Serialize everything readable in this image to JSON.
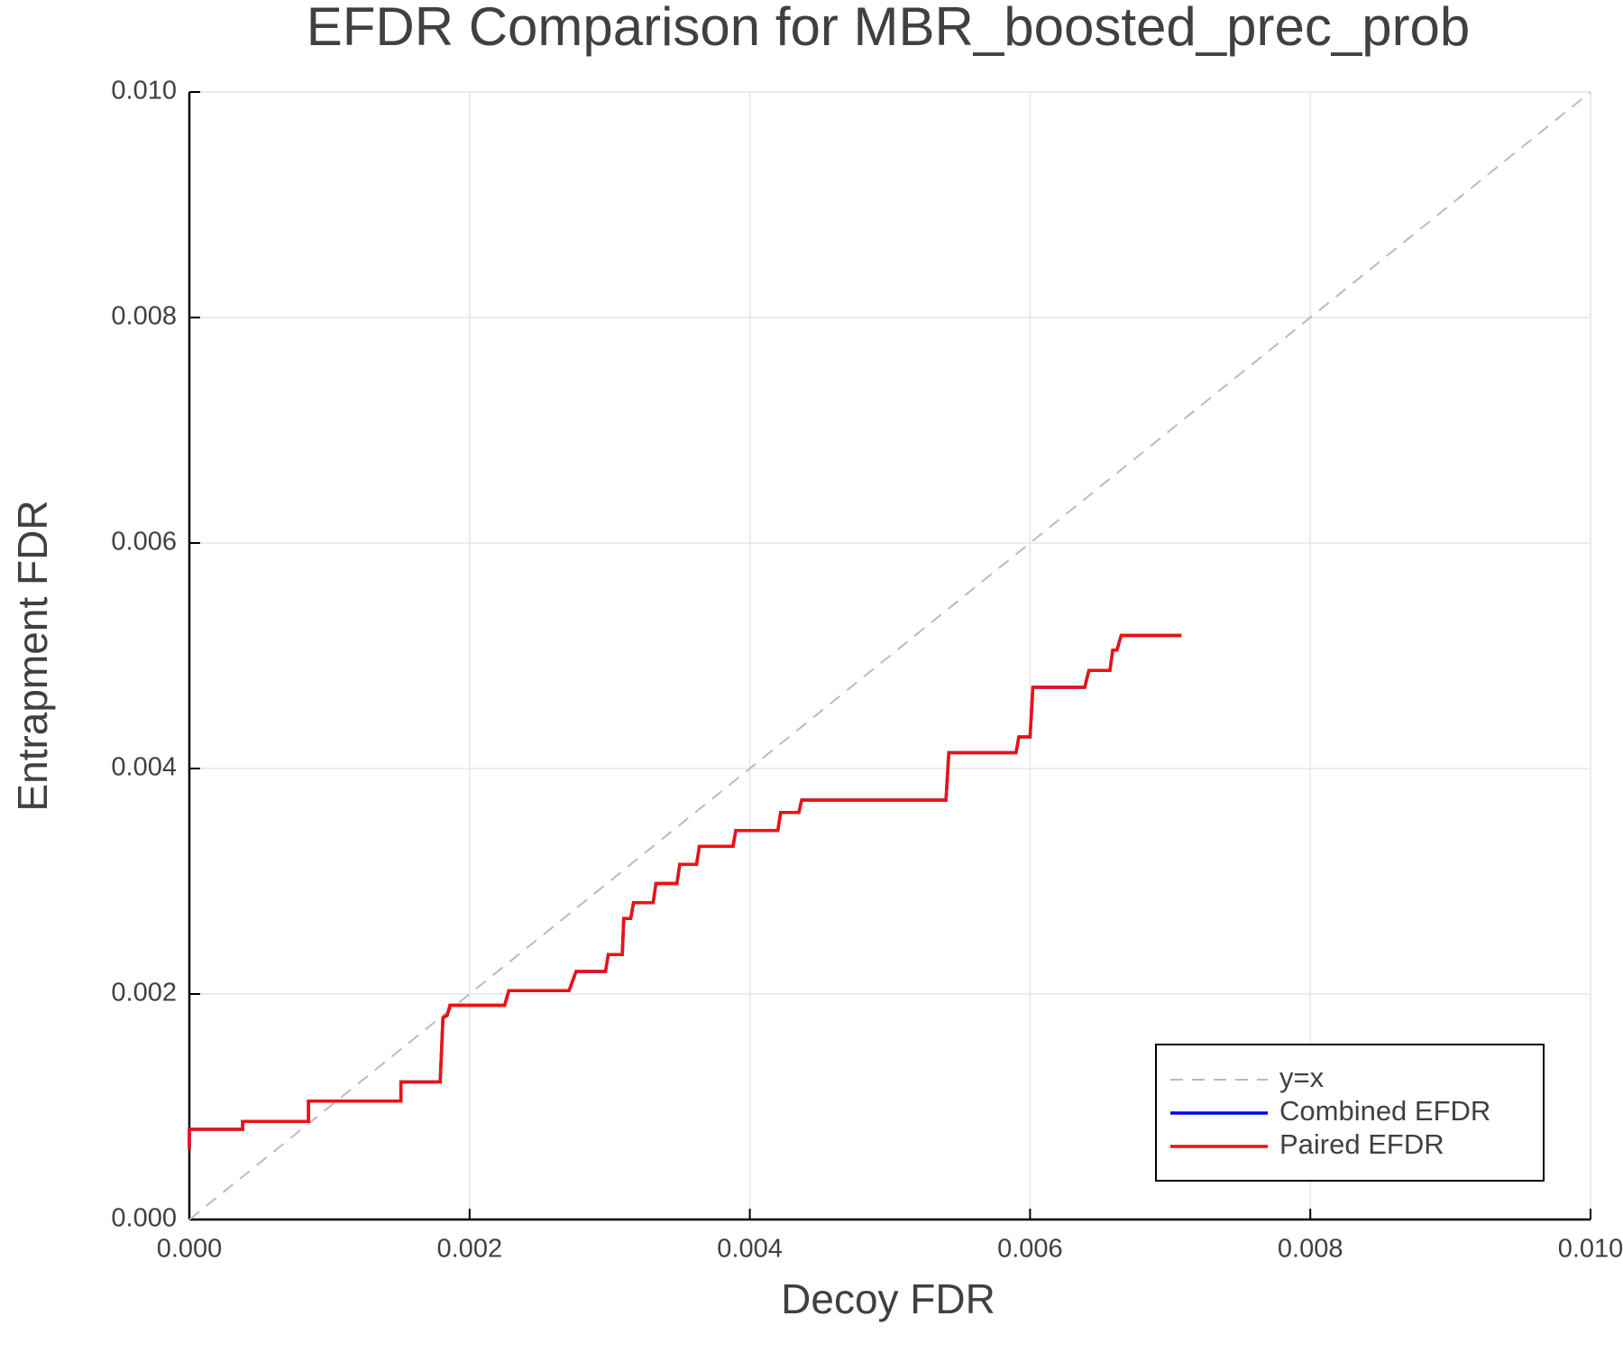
{
  "chart_data": {
    "type": "line",
    "title": "EFDR Comparison for MBR_boosted_prec_prob",
    "xlabel": "Decoy FDR",
    "ylabel": "Entrapment FDR",
    "xlim": [
      0,
      0.01
    ],
    "ylim": [
      0,
      0.01
    ],
    "xticks": [
      {
        "value": 0,
        "label": "0.000"
      },
      {
        "value": 0.002,
        "label": "0.002"
      },
      {
        "value": 0.004,
        "label": "0.004"
      },
      {
        "value": 0.006,
        "label": "0.006"
      },
      {
        "value": 0.008,
        "label": "0.008"
      },
      {
        "value": 0.01,
        "label": "0.010"
      }
    ],
    "yticks": [
      {
        "value": 0,
        "label": "0.000"
      },
      {
        "value": 0.002,
        "label": "0.002"
      },
      {
        "value": 0.004,
        "label": "0.004"
      },
      {
        "value": 0.006,
        "label": "0.006"
      },
      {
        "value": 0.008,
        "label": "0.008"
      },
      {
        "value": 0.01,
        "label": "0.010"
      }
    ],
    "grid": true,
    "legend": "lower right",
    "series": [
      {
        "name": "y=x",
        "color": "#bbbbbb",
        "dashed": true,
        "x": [
          0,
          0.01
        ],
        "values": [
          0,
          0.01
        ]
      },
      {
        "name": "Combined EFDR",
        "color": "#0000ee",
        "x": [
          0,
          0,
          0.00038,
          0.00038,
          0.00085,
          0.00085,
          0.00151,
          0.00151,
          0.00179,
          0.00181,
          0.00184,
          0.00186,
          0.00225,
          0.00228,
          0.00271,
          0.00276,
          0.00297,
          0.00299,
          0.00309,
          0.0031,
          0.00315,
          0.00317,
          0.00331,
          0.00333,
          0.00348,
          0.0035,
          0.00362,
          0.00364,
          0.00388,
          0.0039,
          0.0042,
          0.00422,
          0.00435,
          0.00437,
          0.0054,
          0.00542,
          0.0059,
          0.00592,
          0.006,
          0.00602,
          0.00639,
          0.00642,
          0.00657,
          0.00659,
          0.00662,
          0.00665,
          0.00708
        ],
        "values": [
          0.00062,
          0.0008,
          0.0008,
          0.00087,
          0.00087,
          0.00105,
          0.00105,
          0.00122,
          0.00122,
          0.00179,
          0.00181,
          0.0019,
          0.0019,
          0.00203,
          0.00203,
          0.0022,
          0.0022,
          0.00235,
          0.00235,
          0.00267,
          0.00267,
          0.00281,
          0.00281,
          0.00298,
          0.00298,
          0.00315,
          0.00315,
          0.00331,
          0.00331,
          0.00345,
          0.00345,
          0.00361,
          0.00361,
          0.00372,
          0.00372,
          0.00414,
          0.00414,
          0.00428,
          0.00428,
          0.00472,
          0.00472,
          0.00487,
          0.00487,
          0.00505,
          0.00505,
          0.00518,
          0.00518
        ]
      },
      {
        "name": "Paired EFDR",
        "color": "#ee1111",
        "x": [
          0,
          0,
          0.00038,
          0.00038,
          0.00085,
          0.00085,
          0.00151,
          0.00151,
          0.00179,
          0.00181,
          0.00184,
          0.00186,
          0.00225,
          0.00228,
          0.00271,
          0.00276,
          0.00297,
          0.00299,
          0.00309,
          0.0031,
          0.00315,
          0.00317,
          0.00331,
          0.00333,
          0.00348,
          0.0035,
          0.00362,
          0.00364,
          0.00388,
          0.0039,
          0.0042,
          0.00422,
          0.00435,
          0.00437,
          0.0054,
          0.00542,
          0.0059,
          0.00592,
          0.006,
          0.00602,
          0.00639,
          0.00642,
          0.00657,
          0.00659,
          0.00662,
          0.00665,
          0.00708
        ],
        "values": [
          0.00062,
          0.0008,
          0.0008,
          0.00087,
          0.00087,
          0.00105,
          0.00105,
          0.00122,
          0.00122,
          0.00179,
          0.00181,
          0.0019,
          0.0019,
          0.00203,
          0.00203,
          0.0022,
          0.0022,
          0.00235,
          0.00235,
          0.00267,
          0.00267,
          0.00281,
          0.00281,
          0.00298,
          0.00298,
          0.00315,
          0.00315,
          0.00331,
          0.00331,
          0.00345,
          0.00345,
          0.00361,
          0.00361,
          0.00372,
          0.00372,
          0.00414,
          0.00414,
          0.00428,
          0.00428,
          0.00472,
          0.00472,
          0.00487,
          0.00487,
          0.00505,
          0.00505,
          0.00518,
          0.00518
        ]
      }
    ]
  }
}
